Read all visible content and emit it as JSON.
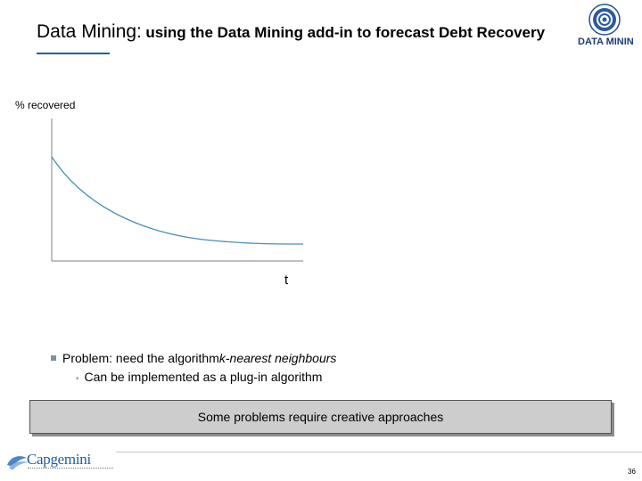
{
  "header": {
    "title_main": "Data Mining:",
    "title_sub": "using the Data Mining add-in to forecast Debt Recovery",
    "logo_text": "DATA MININ",
    "accent_color": "#1d5fa8"
  },
  "figure": {
    "ylabel": "% recovered",
    "xlabel": "t"
  },
  "bullets": {
    "level1_prefix": "Problem: need the algorithm ",
    "level1_italic": "k-nearest neighbours",
    "level2": "Can be implemented as a plug-in algorithm",
    "level2_marker": "•"
  },
  "callout": {
    "text": "Some problems require creative approaches"
  },
  "footer": {
    "brand": "Capgemini",
    "page_number": "36"
  }
}
